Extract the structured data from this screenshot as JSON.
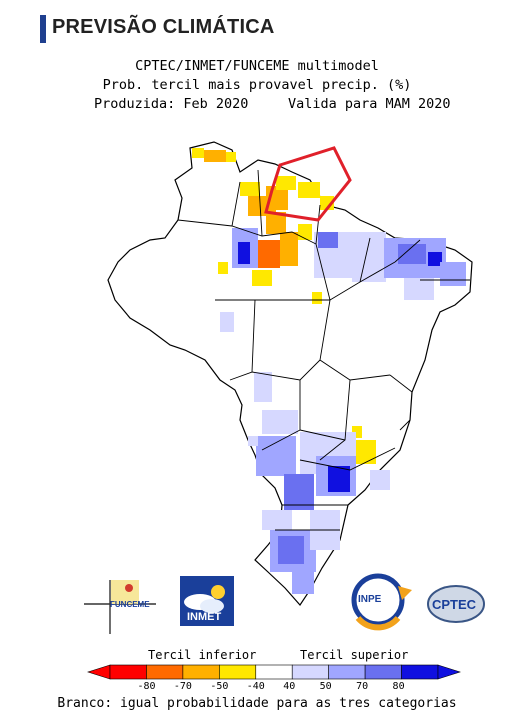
{
  "section_title": "PREVISÃO CLIMÁTICA",
  "header": {
    "line1": "CPTEC/INMET/FUNCEME multimodel",
    "line2": "Prob. tercil mais provavel precip. (%)",
    "produced": "Produzida: Feb 2020",
    "valid": "Valida para MAM 2020"
  },
  "logos": {
    "funceme": "FUNCEME",
    "inmet": "INMET",
    "inpe": "INPE",
    "cptec": "CPTEC"
  },
  "legend": {
    "lower_label": "Tercil inferior",
    "upper_label": "Tercil superior",
    "ticks": [
      "-80",
      "-70",
      "-50",
      "-40",
      "40",
      "50",
      "70",
      "80"
    ],
    "colors": [
      "#ff0000",
      "#ff6a00",
      "#ffb000",
      "#ffe800",
      "#ffffff",
      "#d6d8ff",
      "#a0a6ff",
      "#6a70f0",
      "#1010e0"
    ],
    "footer": "Branco: igual probabilidade para as tres categorias"
  },
  "map": {
    "highlight_color": "#e0202a"
  }
}
